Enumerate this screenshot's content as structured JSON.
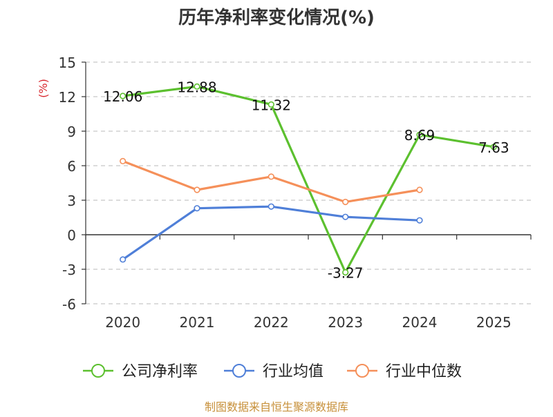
{
  "chart_data": {
    "type": "line",
    "title": "历年净利率变化情况(%)",
    "ylabel": "(%)",
    "xlabel": "",
    "categories": [
      "2020",
      "2021",
      "2022",
      "2023",
      "2024",
      "2025"
    ],
    "ylim": [
      -6,
      15
    ],
    "yticks": [
      -6,
      -3,
      0,
      3,
      6,
      9,
      12,
      15
    ],
    "grid": true,
    "legend_position": "bottom",
    "series": [
      {
        "name": "公司净利率",
        "color": "#5cc02f",
        "values": [
          12.06,
          12.88,
          11.32,
          -3.27,
          8.69,
          7.63
        ],
        "labels": [
          "12.06",
          "12.88",
          "11.32",
          "-3.27",
          "8.69",
          "7.63"
        ],
        "show_labels": true
      },
      {
        "name": "行业均值",
        "color": "#4f7fd8",
        "values": [
          -2.15,
          2.3,
          2.45,
          1.55,
          1.25,
          null
        ],
        "show_labels": false
      },
      {
        "name": "行业中位数",
        "color": "#f5905a",
        "values": [
          6.4,
          3.9,
          5.05,
          2.85,
          3.9,
          null
        ],
        "show_labels": false
      }
    ]
  },
  "source_note": "制图数据来自恒生聚源数据库",
  "colors": {
    "title": "#333333",
    "axis": "#333333",
    "grid": "#c8c8c8",
    "ylabel": "#d9272e",
    "source": "#c7903a"
  }
}
